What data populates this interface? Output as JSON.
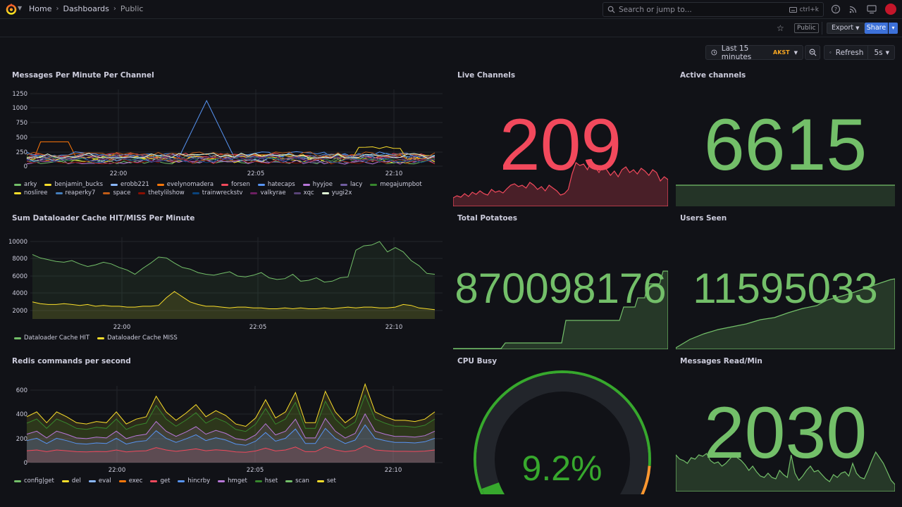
{
  "breadcrumbs": [
    "Home",
    "Dashboards",
    "Public"
  ],
  "search": {
    "placeholder": "Search or jump to...",
    "shortcut": "ctrl+k"
  },
  "toolbar": {
    "public_tag": "Public",
    "export_label": "Export",
    "share_label": "Share"
  },
  "time_picker": {
    "range": "Last 15 minutes",
    "timezone": "AKST"
  },
  "refresh": {
    "label": "Refresh",
    "interval": "5s"
  },
  "colors": {
    "accent": "#3d71d9",
    "stat_green": "#73bf69",
    "stat_red": "#f2495c",
    "bg": "#111217"
  },
  "panels": {
    "messages_per_minute": {
      "title": "Messages Per Minute Per Channel",
      "y_ticks": [
        "1250",
        "1000",
        "750",
        "500",
        "250",
        "0"
      ],
      "x_ticks": [
        "22:00",
        "22:05",
        "22:10"
      ],
      "legend": [
        {
          "name": "arky",
          "color": "#73bf69"
        },
        {
          "name": "benjamin_bucks",
          "color": "#fade2a"
        },
        {
          "name": "erobb221",
          "color": "#8ab8ff"
        },
        {
          "name": "evelynomadera",
          "color": "#ff780a"
        },
        {
          "name": "forsen",
          "color": "#f2495c"
        },
        {
          "name": "hatecaps",
          "color": "#5794f2"
        },
        {
          "name": "hyyjoe",
          "color": "#b877d9"
        },
        {
          "name": "lacy",
          "color": "#705da0"
        },
        {
          "name": "megajumpbot",
          "color": "#37872d"
        },
        {
          "name": "nosliree",
          "color": "#fade2a"
        },
        {
          "name": "reaperky7",
          "color": "#447ebc"
        },
        {
          "name": "space",
          "color": "#c15c17"
        },
        {
          "name": "thetylilshow",
          "color": "#890f02"
        },
        {
          "name": "trainwreckstv",
          "color": "#0a437c"
        },
        {
          "name": "valkyrae",
          "color": "#6d1f62"
        },
        {
          "name": "xqc",
          "color": "#584477"
        },
        {
          "name": "yugi2x",
          "color": "#e0f9d7"
        }
      ]
    },
    "live_channels": {
      "title": "Live Channels",
      "value": "209",
      "color": "#f2495c"
    },
    "active_channels": {
      "title": "Active channels",
      "value": "6615",
      "color": "#73bf69"
    },
    "dataloader": {
      "title": "Sum Dataloader Cache HIT/MISS Per Minute",
      "y_ticks": [
        "10000",
        "8000",
        "6000",
        "4000",
        "2000"
      ],
      "x_ticks": [
        "22:00",
        "22:05",
        "22:10"
      ],
      "legend": [
        {
          "name": "Dataloader Cache HIT",
          "color": "#73bf69"
        },
        {
          "name": "Dataloader Cache MISS",
          "color": "#fade2a"
        }
      ]
    },
    "total_potatoes": {
      "title": "Total Potatoes",
      "value": "870098176",
      "color": "#73bf69"
    },
    "users_seen": {
      "title": "Users Seen",
      "value": "11595033",
      "color": "#73bf69"
    },
    "redis": {
      "title": "Redis commands per second",
      "y_ticks": [
        "600",
        "400",
        "200",
        "0"
      ],
      "x_ticks": [
        "22:00",
        "22:05",
        "22:10"
      ],
      "legend": [
        {
          "name": "config|get",
          "color": "#73bf69"
        },
        {
          "name": "del",
          "color": "#fade2a"
        },
        {
          "name": "eval",
          "color": "#8ab8ff"
        },
        {
          "name": "exec",
          "color": "#ff780a"
        },
        {
          "name": "get",
          "color": "#f2495c"
        },
        {
          "name": "hincrby",
          "color": "#5794f2"
        },
        {
          "name": "hmget",
          "color": "#b877d9"
        },
        {
          "name": "hset",
          "color": "#37872d"
        },
        {
          "name": "scan",
          "color": "#73bf69"
        },
        {
          "name": "set",
          "color": "#fade2a"
        }
      ]
    },
    "cpu_busy": {
      "title": "CPU Busy",
      "value": "9.2%",
      "percent": 9.2,
      "color": "#37a82d"
    },
    "messages_read": {
      "title": "Messages Read/Min",
      "value": "2030",
      "color": "#73bf69"
    }
  }
}
